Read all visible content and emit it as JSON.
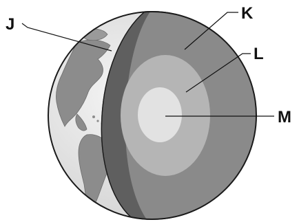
{
  "labels": {
    "j": "J",
    "k": "K",
    "l": "L",
    "m": "M"
  },
  "colors": {
    "background": "#ffffff",
    "outline": "#1a1a1a",
    "earth_ocean": "#e6e6e6",
    "earth_land": "#8f8f8f",
    "crust_edge": "#5f5f5f",
    "mantle": "#8a8a8a",
    "outer_core": "#b5b5b5",
    "inner_core": "#e2e2e2"
  }
}
